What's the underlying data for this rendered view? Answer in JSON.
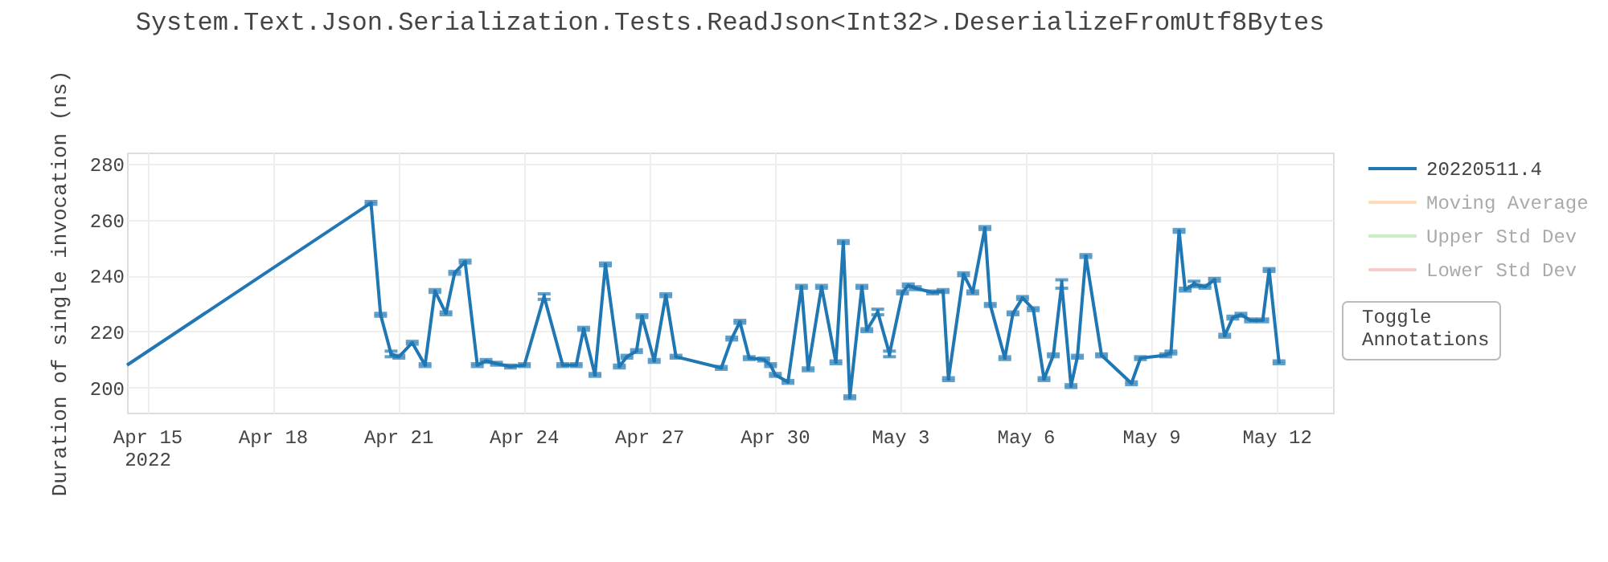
{
  "chart_data": {
    "type": "line",
    "title": "System.Text.Json.Serialization.Tests.ReadJson<Int32>.DeserializeFromUtf8Bytes",
    "ylabel": "Duration of single invocation (ns)",
    "xlim": [
      "2022-04-14T12:00",
      "2022-05-13T08:00"
    ],
    "xticks": [
      {
        "value": "2022-04-15",
        "label": "Apr 15\n2022"
      },
      {
        "value": "2022-04-18",
        "label": "Apr 18"
      },
      {
        "value": "2022-04-21",
        "label": "Apr 21"
      },
      {
        "value": "2022-04-24",
        "label": "Apr 24"
      },
      {
        "value": "2022-04-27",
        "label": "Apr 27"
      },
      {
        "value": "2022-04-30",
        "label": "Apr 30"
      },
      {
        "value": "2022-05-03",
        "label": "May 3"
      },
      {
        "value": "2022-05-06",
        "label": "May 6"
      },
      {
        "value": "2022-05-09",
        "label": "May 9"
      },
      {
        "value": "2022-05-12",
        "label": "May 12"
      }
    ],
    "ylim": [
      191,
      284
    ],
    "yticks": [
      200,
      220,
      240,
      260,
      280
    ],
    "grid": true,
    "legend": "top right",
    "marker": "none",
    "line_style": "solid",
    "annotations": [
      "Toggle Annotations"
    ],
    "series": [
      {
        "name": "20220511.4",
        "color": "#1f77b4",
        "x": [
          "2022-04-14T12:00",
          "2022-04-20T08:00",
          "2022-04-20T13:30",
          "2022-04-20T19:30",
          "2022-04-21T00:00",
          "2022-04-21T07:40",
          "2022-04-21T15:00",
          "2022-04-21T20:40",
          "2022-04-22T03:00",
          "2022-04-22T08:00",
          "2022-04-22T14:00",
          "2022-04-22T21:00",
          "2022-04-23T02:00",
          "2022-04-23T08:00",
          "2022-04-23T16:00",
          "2022-04-24T00:00",
          "2022-04-24T11:20",
          "2022-04-24T22:00",
          "2022-04-25T05:45",
          "2022-04-25T10:00",
          "2022-04-25T16:30",
          "2022-04-25T22:30",
          "2022-04-26T06:30",
          "2022-04-26T10:50",
          "2022-04-26T16:20",
          "2022-04-26T19:30",
          "2022-04-27T02:30",
          "2022-04-27T09:10",
          "2022-04-27T15:00",
          "2022-04-28T17:00",
          "2022-04-28T23:00",
          "2022-04-29T03:40",
          "2022-04-29T09:00",
          "2022-04-29T17:15",
          "2022-04-29T21:15",
          "2022-04-30T00:00",
          "2022-04-30T07:15",
          "2022-04-30T15:00",
          "2022-04-30T18:50",
          "2022-05-01T02:30",
          "2022-05-01T10:45",
          "2022-05-01T15:00",
          "2022-05-01T18:45",
          "2022-05-02T01:40",
          "2022-05-02T04:30",
          "2022-05-02T10:45",
          "2022-05-02T17:30",
          "2022-05-03T01:00",
          "2022-05-03T04:20",
          "2022-05-03T08:20",
          "2022-05-03T18:15",
          "2022-05-04T00:15",
          "2022-05-04T03:20",
          "2022-05-04T12:00",
          "2022-05-04T17:15",
          "2022-05-05T00:15",
          "2022-05-05T03:20",
          "2022-05-05T11:40",
          "2022-05-05T16:20",
          "2022-05-05T21:50",
          "2022-05-06T04:00",
          "2022-05-06T10:10",
          "2022-05-06T15:30",
          "2022-05-06T20:20",
          "2022-05-07T01:40",
          "2022-05-07T05:20",
          "2022-05-07T10:10",
          "2022-05-07T19:10",
          "2022-05-08T12:20",
          "2022-05-08T17:30",
          "2022-05-09T08:00",
          "2022-05-09T11:00",
          "2022-05-09T15:40",
          "2022-05-09T19:10",
          "2022-05-10T00:15",
          "2022-05-10T06:30",
          "2022-05-10T12:00",
          "2022-05-10T17:50",
          "2022-05-10T22:30",
          "2022-05-11T03:10",
          "2022-05-11T08:40",
          "2022-05-11T15:40",
          "2022-05-11T19:20",
          "2022-05-12T01:00"
        ],
        "values": [
          208,
          266,
          226,
          212,
          211,
          216,
          208,
          234.5,
          226.5,
          241,
          245,
          208,
          209.5,
          208.5,
          207.5,
          208,
          232.5,
          208,
          208,
          221,
          204.5,
          244,
          207.5,
          211,
          213,
          225.5,
          209.5,
          233,
          211,
          207,
          217.5,
          223.5,
          210.5,
          210,
          208,
          204.5,
          202,
          236,
          206.5,
          236,
          209,
          252,
          196.5,
          236,
          220.5,
          227,
          212,
          234,
          236.5,
          235.5,
          234,
          234.5,
          203,
          240.5,
          234,
          257,
          229.5,
          210.5,
          226.5,
          232,
          228,
          203,
          211.5,
          237,
          200.5,
          211,
          247,
          211.5,
          201.5,
          210.5,
          211.5,
          212.5,
          256,
          235,
          237,
          236,
          238.5,
          218.5,
          225,
          226,
          224,
          224,
          242,
          209
        ],
        "errors": [
          null,
          0.5,
          0.5,
          1,
          0.5,
          0.5,
          0.5,
          0.5,
          0.5,
          0.5,
          0.5,
          0.5,
          0.5,
          0.5,
          0.5,
          0.5,
          1,
          0.5,
          0.5,
          0.5,
          0.5,
          0.5,
          0.5,
          0.5,
          0.5,
          0.5,
          0.5,
          0.5,
          0.5,
          0.5,
          0.5,
          0.5,
          0.5,
          0.5,
          0.5,
          0.5,
          0.5,
          0.5,
          0.5,
          0.5,
          0.5,
          0.5,
          0.5,
          0.5,
          0.5,
          1,
          1,
          0.5,
          0.5,
          0.5,
          0.5,
          0.5,
          0.5,
          0.5,
          0.5,
          0.5,
          0.5,
          0.5,
          0.5,
          0.5,
          0.5,
          0.5,
          0.5,
          1.5,
          0.5,
          0.5,
          0.5,
          0.5,
          0.5,
          0.5,
          0.5,
          0.5,
          0.5,
          0.5,
          1,
          0.5,
          0.5,
          0.5,
          0.5,
          0.5,
          0.5,
          0.5,
          0.5,
          0.5
        ]
      },
      {
        "name": "Moving Average",
        "color": "#ffbb78"
      },
      {
        "name": "Upper Std Dev",
        "color": "#98df8a"
      },
      {
        "name": "Lower Std Dev",
        "color": "#ff9896"
      }
    ]
  }
}
